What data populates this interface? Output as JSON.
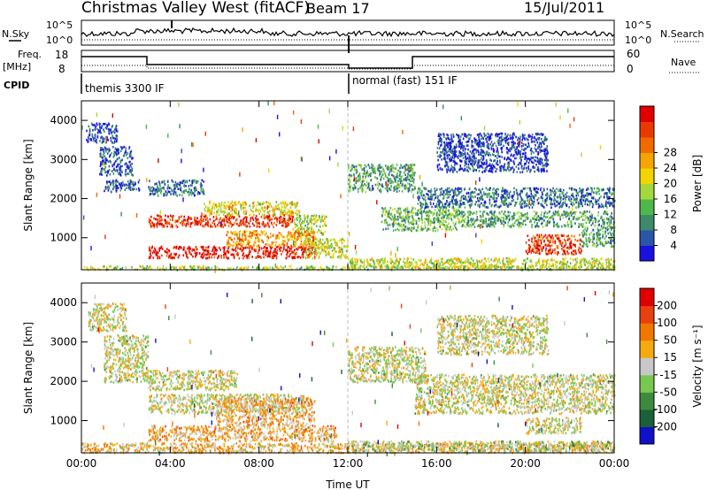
{
  "header": {
    "station": "Christmas Valley West (fitACF)",
    "beam": "Beam 17",
    "date": "15/Jul/2011"
  },
  "labels": {
    "n_sky": "N.Sky",
    "n_search": "N.Search",
    "freq": "Freq.",
    "freq_unit": "[MHz]",
    "nave": "Nave",
    "cpid": "CPID",
    "cpid_1": "themis 3300 IF",
    "cpid_2": "normal (fast) 151 IF",
    "noise_tick_top_left": "10^5",
    "noise_tick_bottom_left": "10^0",
    "noise_tick_top_right": "10^5",
    "noise_tick_bottom_right": "10^0",
    "freq_tick_top": "18",
    "freq_tick_bottom": "8",
    "nave_tick_top": "60",
    "nave_tick_bottom": "0",
    "x_axis_title": "Time UT"
  },
  "chart_data": [
    {
      "type": "heatmap",
      "panel": "power",
      "ylabel": "Slant Range [km]",
      "xlim": [
        "00:00",
        "24:00"
      ],
      "ylim": [
        180,
        4500
      ],
      "x_ticks": [
        "00:00",
        "04:00",
        "08:00",
        "12:00",
        "16:00",
        "20:00",
        "00:00"
      ],
      "y_ticks": [
        1000,
        2000,
        3000,
        4000
      ],
      "colorbar": {
        "label": "Power [dB]",
        "ticks": [
          4,
          8,
          12,
          16,
          20,
          24,
          28
        ],
        "colors": [
          "#1a10e0",
          "#2b55a8",
          "#3c8a6a",
          "#4fb84a",
          "#a4d83c",
          "#f2d400",
          "#f5a400",
          "#f06a00",
          "#e83a00",
          "#e00000"
        ]
      },
      "regions": [
        {
          "t0": 0.2,
          "t1": 1.6,
          "r0": 3450,
          "r1": 3950,
          "level": 0.12
        },
        {
          "t0": 0.8,
          "t1": 2.3,
          "r0": 2600,
          "r1": 3350,
          "level": 0.15
        },
        {
          "t0": 1.0,
          "t1": 2.6,
          "r0": 2200,
          "r1": 2500,
          "level": 0.15
        },
        {
          "t0": 3.0,
          "t1": 5.5,
          "r0": 2100,
          "r1": 2500,
          "level": 0.2
        },
        {
          "t0": 3.0,
          "t1": 9.5,
          "r0": 1300,
          "r1": 1600,
          "level": 0.88
        },
        {
          "t0": 5.5,
          "t1": 9.8,
          "r0": 1600,
          "r1": 1950,
          "level": 0.55
        },
        {
          "t0": 9.5,
          "t1": 11.0,
          "r0": 1100,
          "r1": 1600,
          "level": 0.45
        },
        {
          "t0": 3.0,
          "t1": 10.5,
          "r0": 500,
          "r1": 800,
          "level": 0.95
        },
        {
          "t0": 6.5,
          "t1": 10.5,
          "r0": 800,
          "r1": 1200,
          "level": 0.68
        },
        {
          "t0": 10.0,
          "t1": 12.0,
          "r0": 500,
          "r1": 1000,
          "level": 0.5
        },
        {
          "t0": 0.0,
          "t1": 24.0,
          "r0": 200,
          "r1": 300,
          "level": 0.45
        },
        {
          "t0": 12.0,
          "t1": 15.0,
          "r0": 2200,
          "r1": 2900,
          "level": 0.3
        },
        {
          "t0": 13.5,
          "t1": 17.0,
          "r0": 1200,
          "r1": 1800,
          "level": 0.35
        },
        {
          "t0": 17.0,
          "t1": 24.0,
          "r0": 1300,
          "r1": 1700,
          "level": 0.3
        },
        {
          "t0": 15.0,
          "t1": 24.0,
          "r0": 1800,
          "r1": 2300,
          "level": 0.2
        },
        {
          "t0": 16.0,
          "t1": 21.0,
          "r0": 2700,
          "r1": 3700,
          "level": 0.12
        },
        {
          "t0": 20.0,
          "t1": 22.5,
          "r0": 600,
          "r1": 1100,
          "level": 0.85
        },
        {
          "t0": 22.5,
          "t1": 24.0,
          "r0": 800,
          "r1": 1300,
          "level": 0.3
        },
        {
          "t0": 12.0,
          "t1": 24.0,
          "r0": 250,
          "r1": 500,
          "level": 0.5
        }
      ]
    },
    {
      "type": "heatmap",
      "panel": "velocity",
      "ylabel": "Slant Range [km]",
      "xlabel": "Time UT",
      "xlim": [
        "00:00",
        "24:00"
      ],
      "ylim": [
        180,
        4500
      ],
      "x_ticks": [
        "00:00",
        "04:00",
        "08:00",
        "12:00",
        "16:00",
        "20:00",
        "00:00"
      ],
      "y_ticks": [
        1000,
        2000,
        3000,
        4000
      ],
      "colorbar": {
        "label": "Velocity [m s⁻¹]",
        "ticks": [
          200,
          100,
          50,
          15,
          -15,
          -50,
          -100,
          -200
        ],
        "colors": [
          "#1010c8",
          "#1a6038",
          "#3d8a3d",
          "#78c850",
          "#c8c8c8",
          "#f5aa10",
          "#f07800",
          "#e84010",
          "#e00000"
        ]
      },
      "regions": [
        {
          "t0": 0.3,
          "t1": 2.0,
          "r0": 3300,
          "r1": 4000,
          "level": 0.5
        },
        {
          "t0": 1.0,
          "t1": 3.0,
          "r0": 2000,
          "r1": 3200,
          "level": 0.5
        },
        {
          "t0": 3.0,
          "t1": 7.0,
          "r0": 1800,
          "r1": 2300,
          "level": 0.5
        },
        {
          "t0": 3.0,
          "t1": 10.0,
          "r0": 1200,
          "r1": 1700,
          "level": 0.5
        },
        {
          "t0": 6.0,
          "t1": 10.5,
          "r0": 900,
          "r1": 1600,
          "level": 0.62
        },
        {
          "t0": 3.0,
          "t1": 11.5,
          "r0": 500,
          "r1": 900,
          "level": 0.62
        },
        {
          "t0": 12.0,
          "t1": 15.5,
          "r0": 2000,
          "r1": 2900,
          "level": 0.5
        },
        {
          "t0": 15.0,
          "t1": 24.0,
          "r0": 1200,
          "r1": 2200,
          "level": 0.5
        },
        {
          "t0": 16.0,
          "t1": 21.0,
          "r0": 2700,
          "r1": 3700,
          "level": 0.5
        },
        {
          "t0": 20.0,
          "t1": 22.5,
          "r0": 700,
          "r1": 1100,
          "level": 0.5
        },
        {
          "t0": 0.0,
          "t1": 24.0,
          "r0": 200,
          "r1": 450,
          "level": 0.6
        },
        {
          "t0": 12.0,
          "t1": 24.0,
          "r0": 250,
          "r1": 500,
          "level": 0.45
        }
      ]
    }
  ]
}
